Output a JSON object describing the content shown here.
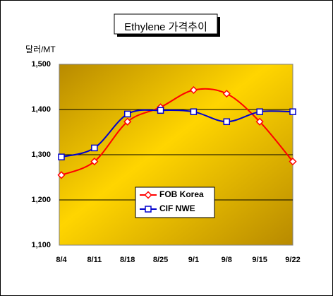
{
  "chart_data": {
    "type": "line",
    "title": "Ethylene 가격추이",
    "ylabel": "달러/MT",
    "xlabel": "",
    "categories": [
      "8/4",
      "8/11",
      "8/18",
      "8/25",
      "9/1",
      "9/8",
      "9/15",
      "9/22"
    ],
    "ylim": [
      1100,
      1500
    ],
    "yticks": [
      "1,100",
      "1,200",
      "1,300",
      "1,400",
      "1,500"
    ],
    "grid": true,
    "legend_position": "bottom-center",
    "series": [
      {
        "name": "FOB Korea",
        "values": [
          1255,
          1285,
          1373,
          1405,
          1443,
          1435,
          1373,
          1285
        ],
        "color": "#ff0000",
        "marker": "diamond"
      },
      {
        "name": "CIF NWE",
        "values": [
          1295,
          1315,
          1390,
          1398,
          1395,
          1373,
          1395,
          1395
        ],
        "color": "#0000cc",
        "marker": "square"
      }
    ],
    "plot_background": [
      "#c8a000",
      "#ffd700",
      "#b89000"
    ]
  }
}
